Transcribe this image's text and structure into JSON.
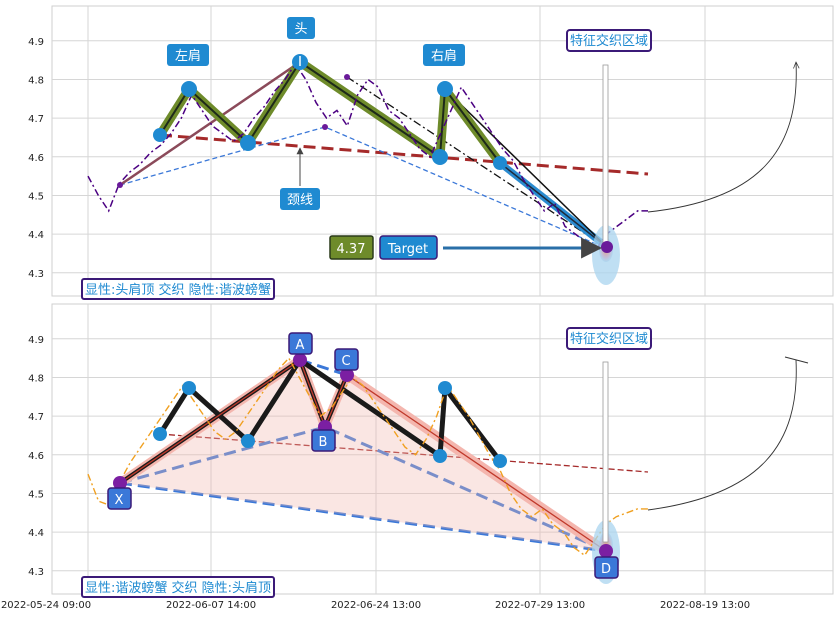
{
  "chart_data": [
    {
      "type": "line",
      "panel": "top",
      "ylim": [
        4.24,
        4.99
      ],
      "y_ticks": [
        "4.3",
        "4.4",
        "4.5",
        "4.6",
        "4.7",
        "4.8",
        "4.9"
      ],
      "grid": true,
      "price_series": {
        "style": "purple dash-dot",
        "values": [
          4.55,
          4.5,
          4.46,
          4.53,
          4.56,
          4.58,
          4.61,
          4.63,
          4.66,
          4.7,
          4.76,
          4.72,
          4.68,
          4.66,
          4.64,
          4.66,
          4.7,
          4.73,
          4.77,
          4.8,
          4.84,
          4.8,
          4.74,
          4.7,
          4.72,
          4.68,
          4.76,
          4.8,
          4.78,
          4.72,
          4.7,
          4.66,
          4.62,
          4.6,
          4.66,
          4.72,
          4.78,
          4.74,
          4.7,
          4.66,
          4.62,
          4.59,
          4.54,
          4.5,
          4.46,
          4.48,
          4.42,
          4.4,
          4.38,
          4.36,
          4.4,
          4.42,
          4.44,
          4.46,
          4.46
        ]
      },
      "pattern_points": [
        {
          "name": "左肩-start",
          "value": 4.66
        },
        {
          "name": "左肩",
          "value": 4.78
        },
        {
          "name": "low1",
          "value": 4.64
        },
        {
          "name": "头",
          "value": 4.85
        },
        {
          "name": "low2",
          "value": 4.6
        },
        {
          "name": "右肩",
          "value": 4.78
        },
        {
          "name": "end",
          "value": 4.59
        },
        {
          "name": "target",
          "value": 4.37
        }
      ],
      "neckline": {
        "label": "颈线",
        "start": 4.66,
        "end": 4.56
      },
      "labels": {
        "left_shoulder": "左肩",
        "head": "头",
        "right_shoulder": "右肩",
        "neckline": "颈线",
        "zone": "特征交织区域",
        "target_value": "4.37",
        "target_text": "Target",
        "footer": "显性:头肩顶 交织 隐性:谐波螃蟹"
      }
    },
    {
      "type": "line",
      "panel": "bottom",
      "ylim": [
        4.24,
        4.99
      ],
      "y_ticks": [
        "4.3",
        "4.4",
        "4.5",
        "4.6",
        "4.7",
        "4.8",
        "4.9"
      ],
      "grid": true,
      "price_series": {
        "style": "orange dash-dot",
        "values": [
          4.55,
          4.48,
          4.47,
          4.53,
          4.58,
          4.62,
          4.66,
          4.7,
          4.74,
          4.78,
          4.74,
          4.7,
          4.66,
          4.64,
          4.66,
          4.7,
          4.74,
          4.78,
          4.82,
          4.85,
          4.8,
          4.75,
          4.7,
          4.72,
          4.76,
          4.8,
          4.78,
          4.74,
          4.7,
          4.66,
          4.62,
          4.6,
          4.64,
          4.7,
          4.78,
          4.74,
          4.7,
          4.65,
          4.6,
          4.56,
          4.5,
          4.46,
          4.44,
          4.46,
          4.42,
          4.4,
          4.36,
          4.34,
          4.38,
          4.42,
          4.44,
          4.45,
          4.46,
          4.46
        ]
      },
      "harmonic_points": [
        {
          "name": "X",
          "value": 4.53
        },
        {
          "name": "A",
          "value": 4.85
        },
        {
          "name": "B",
          "value": 4.68
        },
        {
          "name": "C",
          "value": 4.81
        },
        {
          "name": "D",
          "value": 4.35
        }
      ],
      "labels": {
        "X": "X",
        "A": "A",
        "B": "B",
        "C": "C",
        "D": "D",
        "zone": "特征交织区域",
        "footer": "显性:谐波螃蟹 交织 隐性:头肩顶"
      }
    }
  ],
  "x_axis": {
    "ticks": [
      "2022-05-24 09:00",
      "2022-06-07 14:00",
      "2022-06-24 13:00",
      "2022-07-29 13:00",
      "2022-08-19 13:00"
    ]
  },
  "colors": {
    "accent_blue": "#1f8ad1",
    "olive": "#6e8b2a",
    "dark_red": "#9b1c1c",
    "purple": "#4b0082",
    "orange": "#f0a020",
    "label_border": "#3b1a78"
  }
}
